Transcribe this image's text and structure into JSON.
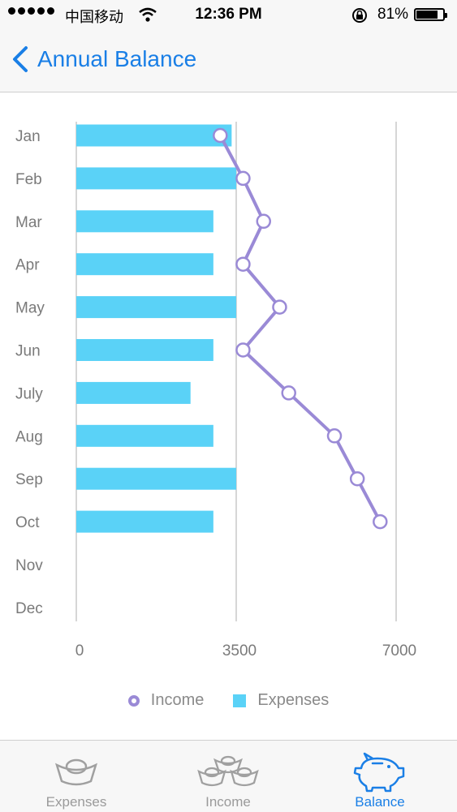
{
  "status": {
    "carrier": "中国移动",
    "time": "12:36 PM",
    "battery_pct": "81%",
    "battery_level": 0.81
  },
  "nav": {
    "title": "Annual Balance",
    "back_icon": "chevron-left-icon"
  },
  "colors": {
    "accent": "#1a7fe6",
    "bar": "#5ad2f7",
    "line": "#9a8ad6",
    "grid": "#c8c8c8",
    "label": "#7a7a7a"
  },
  "chart_data": {
    "type": "bar",
    "orientation": "horizontal",
    "categories": [
      "Jan",
      "Feb",
      "Mar",
      "Apr",
      "May",
      "Jun",
      "July",
      "Aug",
      "Sep",
      "Oct",
      "Nov",
      "Dec"
    ],
    "series": [
      {
        "name": "Expenses",
        "type": "bar",
        "values": [
          3400,
          3500,
          3000,
          3000,
          3500,
          3000,
          2500,
          3000,
          3500,
          3000,
          null,
          null
        ]
      },
      {
        "name": "Income",
        "type": "line",
        "values": [
          3150,
          3650,
          4100,
          3650,
          4450,
          3650,
          4650,
          5650,
          6150,
          6650,
          null,
          null
        ]
      }
    ],
    "x_ticks": [
      "0",
      "3500",
      "7000"
    ],
    "xlim": [
      0,
      7000
    ],
    "grid": true,
    "legend": [
      "Income",
      "Expenses"
    ],
    "legend_position": "bottom"
  },
  "tabs": [
    {
      "label": "Expenses",
      "icon": "gold-ingot-icon",
      "active": false
    },
    {
      "label": "Income",
      "icon": "gold-ingots-stack-icon",
      "active": false
    },
    {
      "label": "Balance",
      "icon": "piggy-bank-icon",
      "active": true
    }
  ]
}
